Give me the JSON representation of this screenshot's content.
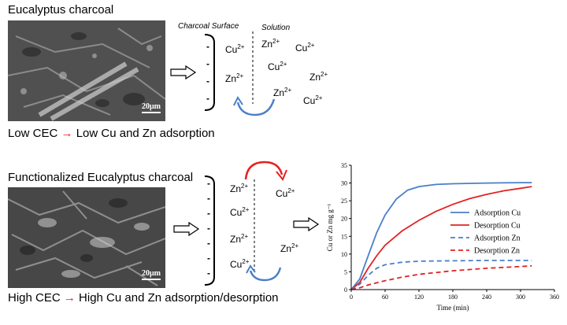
{
  "top": {
    "title": "Eucalyptus charcoal",
    "scale_bar": "20μm",
    "caption_left": "Low CEC",
    "caption_arrow": "→",
    "caption_right": "Low Cu and Zn adsorption",
    "header_surface": "Charcoal Surface",
    "header_solution": "Solution",
    "ions": [
      {
        "base": "Cu",
        "charge": "2+"
      },
      {
        "base": "Zn",
        "charge": "2+"
      },
      {
        "base": "Zn",
        "charge": "2+"
      },
      {
        "base": "Cu",
        "charge": "2+"
      },
      {
        "base": "Cu",
        "charge": "2+"
      },
      {
        "base": "Zn",
        "charge": "2+"
      },
      {
        "base": "Zn",
        "charge": "2+"
      },
      {
        "base": "Cu",
        "charge": "2+"
      }
    ],
    "minus": [
      "-",
      "-",
      "-",
      "-"
    ]
  },
  "bottom": {
    "title": "Functionalized Eucalyptus charcoal",
    "scale_bar": "20μm",
    "caption_left": "High CEC",
    "caption_arrow": "→",
    "caption_right": "High Cu and Zn adsorption/desorption",
    "ions": [
      {
        "base": "Zn",
        "charge": "2+"
      },
      {
        "base": "Cu",
        "charge": "2+"
      },
      {
        "base": "Zn",
        "charge": "2+"
      },
      {
        "base": "Cu",
        "charge": "2+"
      },
      {
        "base": "Cu",
        "charge": "2+"
      },
      {
        "base": "Zn",
        "charge": "2+"
      }
    ],
    "minus": [
      "-",
      "-",
      "-",
      "-",
      "-",
      "-",
      "-"
    ]
  },
  "chart_data": {
    "type": "line",
    "title": "",
    "xlabel": "Time (min)",
    "ylabel": "Cu or Zn mg g⁻¹",
    "xlim": [
      0,
      360
    ],
    "ylim": [
      0,
      35
    ],
    "xticks": [
      0,
      60,
      120,
      180,
      240,
      300,
      360
    ],
    "yticks": [
      0,
      5,
      10,
      15,
      20,
      25,
      30,
      35
    ],
    "legend_position": "right",
    "series": [
      {
        "name": "Adsorption Cu",
        "color": "#4a7fc9",
        "dash": "solid",
        "x": [
          0,
          15,
          30,
          45,
          60,
          80,
          100,
          120,
          150,
          180,
          240,
          300,
          320
        ],
        "y": [
          0,
          3,
          9.5,
          16,
          21,
          25.5,
          28,
          29,
          29.6,
          29.8,
          30,
          30.1,
          30.1
        ]
      },
      {
        "name": "Desorption Cu",
        "color": "#e32222",
        "dash": "solid",
        "x": [
          0,
          15,
          30,
          45,
          60,
          90,
          120,
          150,
          180,
          210,
          240,
          270,
          300,
          320
        ],
        "y": [
          0,
          2,
          6,
          9.5,
          12.5,
          16.5,
          19.5,
          22,
          24,
          25.6,
          26.8,
          27.8,
          28.5,
          29
        ]
      },
      {
        "name": "Adsorption Zn",
        "color": "#4a7fc9",
        "dash": "dashed",
        "x": [
          0,
          15,
          30,
          45,
          60,
          90,
          120,
          180,
          240,
          320
        ],
        "y": [
          0,
          1.5,
          4,
          6,
          7,
          7.7,
          8,
          8.1,
          8.2,
          8.2
        ]
      },
      {
        "name": "Desorption Zn",
        "color": "#e32222",
        "dash": "dashed",
        "x": [
          0,
          15,
          30,
          60,
          90,
          120,
          180,
          240,
          300,
          320
        ],
        "y": [
          0,
          0.5,
          1.3,
          2.5,
          3.5,
          4.3,
          5.3,
          6,
          6.5,
          6.7
        ]
      }
    ]
  }
}
